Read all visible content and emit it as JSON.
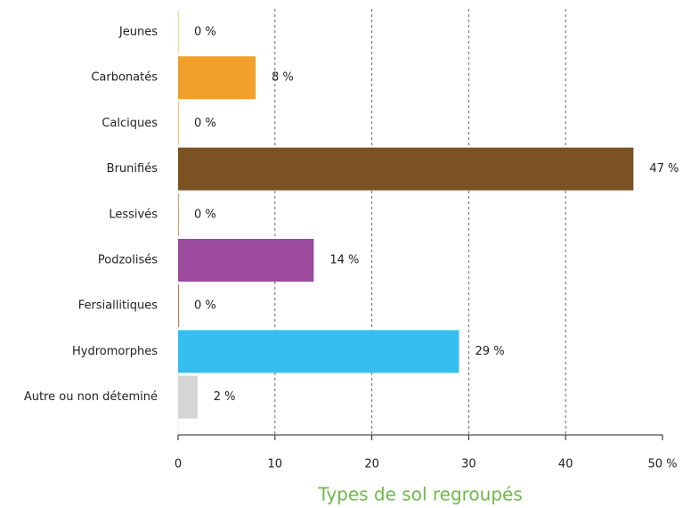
{
  "chart_data": {
    "type": "hbar",
    "xlabel": "Types de sol regroupés",
    "categories": [
      "Jeunes",
      "Carbonatés",
      "Calciques",
      "Brunifiés",
      "Lessivés",
      "Podzolisés",
      "Fersiallitiques",
      "Hydromorphes",
      "Autre ou non déteminé"
    ],
    "values": [
      0,
      8,
      0,
      47,
      0,
      14,
      0,
      29,
      2
    ],
    "value_labels": [
      "0 %",
      "8 %",
      "0 %",
      "47 %",
      "0 %",
      "14 %",
      "0 %",
      "29 %",
      "2 %"
    ],
    "colors": [
      "#f3e27a",
      "#f0a02a",
      "#e8c96a",
      "#7b5323",
      "#c9a26b",
      "#9b4a9e",
      "#d8704a",
      "#35bfef",
      "#d5d5d5"
    ],
    "xlim": [
      0,
      50
    ],
    "xticks": [
      0,
      10,
      20,
      30,
      40,
      {
        "value": 50,
        "label": "50 %"
      }
    ],
    "grid": true
  }
}
